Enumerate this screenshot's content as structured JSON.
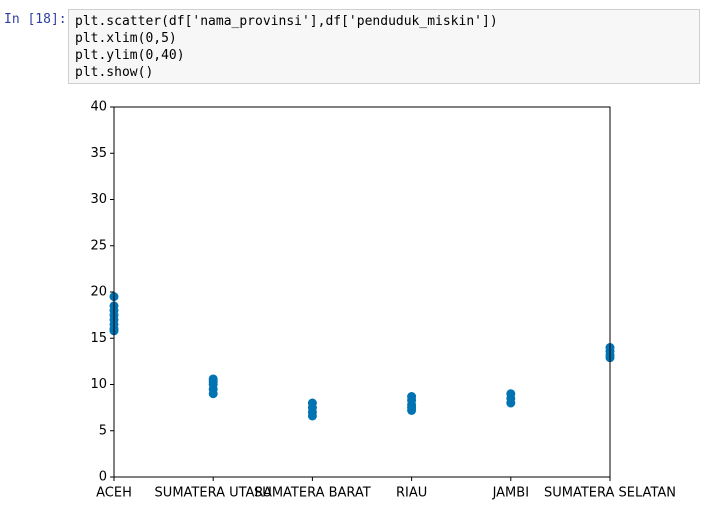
{
  "code_cell": {
    "prompt": "In [18]:",
    "lines": [
      "plt.scatter(df['nama_provinsi'],df['penduduk_miskin'])",
      "plt.xlim(0,5)",
      "plt.ylim(0,40)",
      "plt.show()"
    ]
  },
  "chart_data": {
    "type": "scatter",
    "color": "#0173b2",
    "xlim": [
      0,
      5
    ],
    "ylim": [
      0,
      40
    ],
    "xticks": [
      {
        "value": 0,
        "label": "ACEH"
      },
      {
        "value": 1,
        "label": "SUMATERA UTARA"
      },
      {
        "value": 2,
        "label": "SUMATERA BARAT"
      },
      {
        "value": 3,
        "label": "RIAU"
      },
      {
        "value": 4,
        "label": "JAMBI"
      },
      {
        "value": 5,
        "label": "SUMATERA SELATAN"
      }
    ],
    "yticks": [
      0,
      5,
      10,
      15,
      20,
      25,
      30,
      35,
      40
    ],
    "x": [
      0,
      0,
      0,
      0,
      0,
      0,
      0,
      0,
      1,
      1,
      1,
      1,
      1,
      2,
      2,
      2,
      2,
      3,
      3,
      3,
      3,
      3,
      4,
      4,
      4,
      5,
      5,
      5,
      5
    ],
    "y": [
      19.5,
      18.5,
      18,
      17.5,
      17,
      16.5,
      16,
      15.8,
      10.6,
      10.3,
      10,
      9.5,
      9.0,
      8.0,
      7.5,
      7.0,
      6.6,
      8.7,
      8.3,
      7.8,
      7.5,
      7.2,
      9.0,
      8.5,
      8.0,
      14.0,
      13.6,
      13.2,
      12.9
    ]
  }
}
